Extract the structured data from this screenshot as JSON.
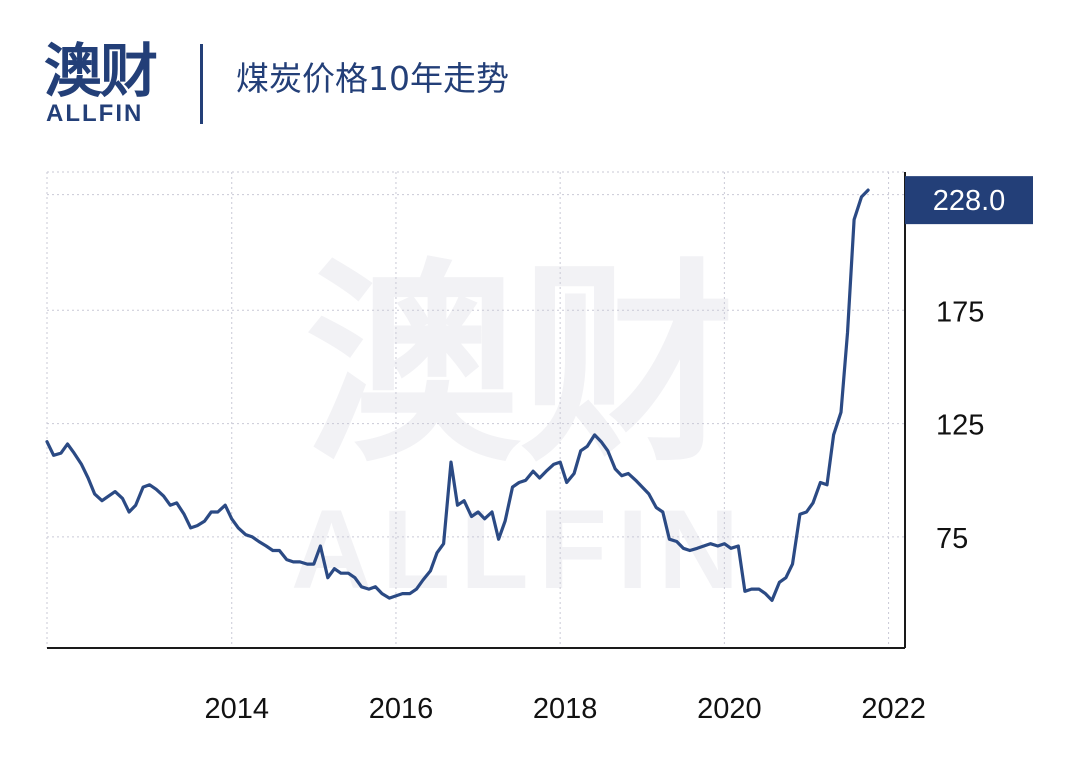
{
  "header": {
    "logo_cn": "澳财",
    "logo_en": "ALLFIN",
    "title": "煤炭价格10年走势"
  },
  "watermark": {
    "cn": "澳财",
    "en": "ALLFIN"
  },
  "colors": {
    "brand": "#233f78",
    "line": "#2b4a84",
    "grid": "#c9c9d6",
    "watermark": "#f2f2f5"
  },
  "chart_data": {
    "type": "line",
    "title": "",
    "xlabel": "",
    "ylabel": "",
    "x_ticks": [
      "2014",
      "2016",
      "2018",
      "2020",
      "2022"
    ],
    "y_ticks": [
      "75",
      "125",
      "175"
    ],
    "last_value_label": "228.0",
    "xlim": [
      2011.75,
      2022.2
    ],
    "ylim": [
      26,
      236
    ],
    "grid": true,
    "series": [
      {
        "x": [
          2011.75,
          2011.83,
          2011.92,
          2012.0,
          2012.08,
          2012.17,
          2012.25,
          2012.33,
          2012.42,
          2012.5,
          2012.58,
          2012.67,
          2012.75,
          2012.83,
          2012.92,
          2013.0,
          2013.08,
          2013.17,
          2013.25,
          2013.33,
          2013.42,
          2013.5,
          2013.58,
          2013.67,
          2013.75,
          2013.83,
          2013.92,
          2014.0,
          2014.08,
          2014.17,
          2014.25,
          2014.33,
          2014.42,
          2014.5,
          2014.58,
          2014.67,
          2014.75,
          2014.83,
          2014.92,
          2015.0,
          2015.08,
          2015.17,
          2015.25,
          2015.33,
          2015.42,
          2015.5,
          2015.58,
          2015.67,
          2015.75,
          2015.83,
          2015.92,
          2016.0,
          2016.08,
          2016.17,
          2016.25,
          2016.33,
          2016.42,
          2016.5,
          2016.58,
          2016.67,
          2016.75,
          2016.83,
          2016.92,
          2017.0,
          2017.08,
          2017.17,
          2017.25,
          2017.33,
          2017.42,
          2017.5,
          2017.58,
          2017.67,
          2017.75,
          2017.83,
          2017.92,
          2018.0,
          2018.08,
          2018.17,
          2018.25,
          2018.33,
          2018.42,
          2018.5,
          2018.58,
          2018.67,
          2018.75,
          2018.83,
          2018.92,
          2019.0,
          2019.08,
          2019.17,
          2019.25,
          2019.33,
          2019.42,
          2019.5,
          2019.58,
          2019.67,
          2019.75,
          2019.83,
          2019.92,
          2020.0,
          2020.08,
          2020.17,
          2020.25,
          2020.33,
          2020.42,
          2020.5,
          2020.58,
          2020.67,
          2020.75,
          2020.83,
          2020.92,
          2021.0,
          2021.08,
          2021.17,
          2021.25,
          2021.33,
          2021.42,
          2021.5,
          2021.58,
          2021.67,
          2021.75
        ],
        "values": [
          117,
          111,
          112,
          116,
          112,
          107,
          101,
          94,
          91,
          93,
          95,
          92,
          86,
          89,
          97,
          98,
          96,
          93,
          89,
          90,
          85,
          79,
          80,
          82,
          86,
          86,
          89,
          83,
          79,
          76,
          75,
          73,
          71,
          69,
          69,
          65,
          64,
          64,
          63,
          63,
          71,
          57,
          61,
          59,
          59,
          57,
          53,
          52,
          53,
          50,
          48,
          49,
          50,
          50,
          52,
          56,
          60,
          68,
          72,
          108,
          89,
          91,
          84,
          86,
          83,
          86,
          74,
          82,
          97,
          99,
          100,
          104,
          101,
          104,
          107,
          108,
          99,
          103,
          113,
          115,
          120,
          117,
          113,
          105,
          102,
          103,
          100,
          97,
          94,
          88,
          86,
          74,
          73,
          70,
          69,
          70,
          71,
          72,
          71,
          72,
          70,
          71,
          51,
          52,
          52,
          50,
          47,
          55,
          57,
          63,
          85,
          86,
          90,
          99,
          98,
          120,
          130,
          165,
          215,
          225,
          228
        ]
      }
    ]
  }
}
